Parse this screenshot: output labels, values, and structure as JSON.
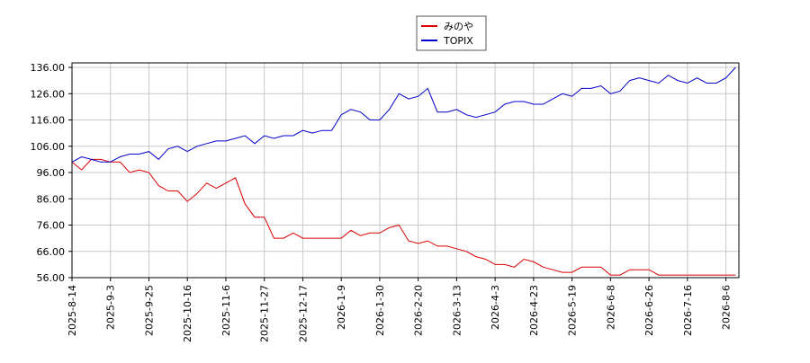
{
  "chart_data": {
    "type": "line",
    "categories": [
      "2025-8-14",
      null,
      null,
      null,
      "2025-9-3",
      null,
      null,
      null,
      "2025-9-25",
      null,
      null,
      null,
      "2025-10-16",
      null,
      null,
      null,
      "2025-11-6",
      null,
      null,
      null,
      "2025-11-27",
      null,
      null,
      null,
      "2025-12-17",
      null,
      null,
      null,
      "2026-1-9",
      null,
      null,
      null,
      "2026-1-30",
      null,
      null,
      null,
      "2026-2-20",
      null,
      null,
      null,
      "2026-3-13",
      null,
      null,
      null,
      "2026-4-3",
      null,
      null,
      null,
      "2026-4-23",
      null,
      null,
      null,
      "2026-5-19",
      null,
      null,
      null,
      "2026-6-8",
      null,
      null,
      null,
      "2026-6-26",
      null,
      null,
      null,
      "2026-7-16",
      null,
      null,
      null,
      "2026-8-6",
      null
    ],
    "series": [
      {
        "name": "みのや",
        "color": "#dd0000",
        "values": [
          100,
          97,
          101,
          101,
          100,
          100,
          96,
          97,
          96,
          91,
          89,
          89,
          85,
          88,
          92,
          90,
          92,
          94,
          84,
          79,
          79,
          71,
          71,
          73,
          71,
          71,
          71,
          71,
          71,
          74,
          72,
          73,
          73,
          75,
          76,
          70,
          69,
          70,
          68,
          68,
          67,
          66,
          64,
          63,
          61,
          61,
          60,
          63,
          62,
          60,
          59,
          58,
          58,
          60,
          60,
          60,
          57,
          57,
          59,
          59,
          59,
          57,
          57,
          57,
          57,
          57,
          57,
          57,
          57,
          57
        ]
      },
      {
        "name": "TOPIX",
        "color": "#0000cc",
        "values": [
          100,
          102,
          101,
          100,
          100,
          102,
          103,
          103,
          104,
          101,
          105,
          106,
          104,
          106,
          107,
          108,
          108,
          109,
          110,
          107,
          110,
          109,
          110,
          110,
          112,
          111,
          112,
          112,
          118,
          120,
          119,
          116,
          116,
          120,
          126,
          124,
          125,
          128,
          119,
          119,
          120,
          118,
          117,
          118,
          119,
          122,
          123,
          123,
          122,
          122,
          124,
          126,
          125,
          128,
          128,
          129,
          126,
          127,
          131,
          132,
          131,
          130,
          133,
          131,
          130,
          132,
          130,
          130,
          132,
          136
        ]
      }
    ],
    "ylim": [
      56,
      136
    ],
    "yticks": [
      {
        "value": 56,
        "label": "56.00"
      },
      {
        "value": 66,
        "label": "66.00"
      },
      {
        "value": 76,
        "label": "76.00"
      },
      {
        "value": 86,
        "label": "86.00"
      },
      {
        "value": 96,
        "label": "96.00"
      },
      {
        "value": 106,
        "label": "106.00"
      },
      {
        "value": 116,
        "label": "116.00"
      },
      {
        "value": 126,
        "label": "126.00"
      },
      {
        "value": 136,
        "label": "136.00"
      }
    ],
    "grid": true,
    "legend": "top"
  }
}
